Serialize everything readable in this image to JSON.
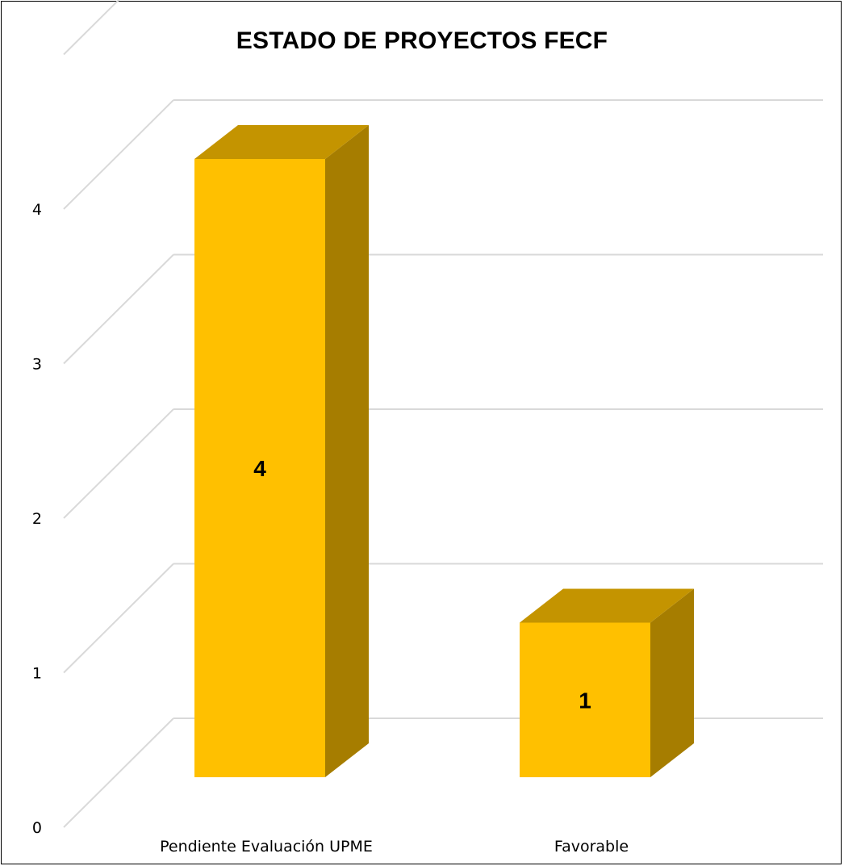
{
  "chart_data": {
    "type": "bar",
    "title": "ESTADO DE PROYECTOS FECF",
    "categories": [
      "Pendiente Evaluación UPME",
      "Favorable"
    ],
    "values": [
      4,
      1
    ],
    "data_labels": [
      "4",
      "1"
    ],
    "y_ticks": [
      "0",
      "1",
      "2",
      "3",
      "4"
    ],
    "ylim": [
      0,
      4
    ],
    "grid": true,
    "legend": "none",
    "style": "3d-column",
    "colors": {
      "bar_front": "#FFC000",
      "bar_top": "#C49400",
      "bar_side": "#A67D00",
      "grid": "#D9D9D9"
    }
  }
}
